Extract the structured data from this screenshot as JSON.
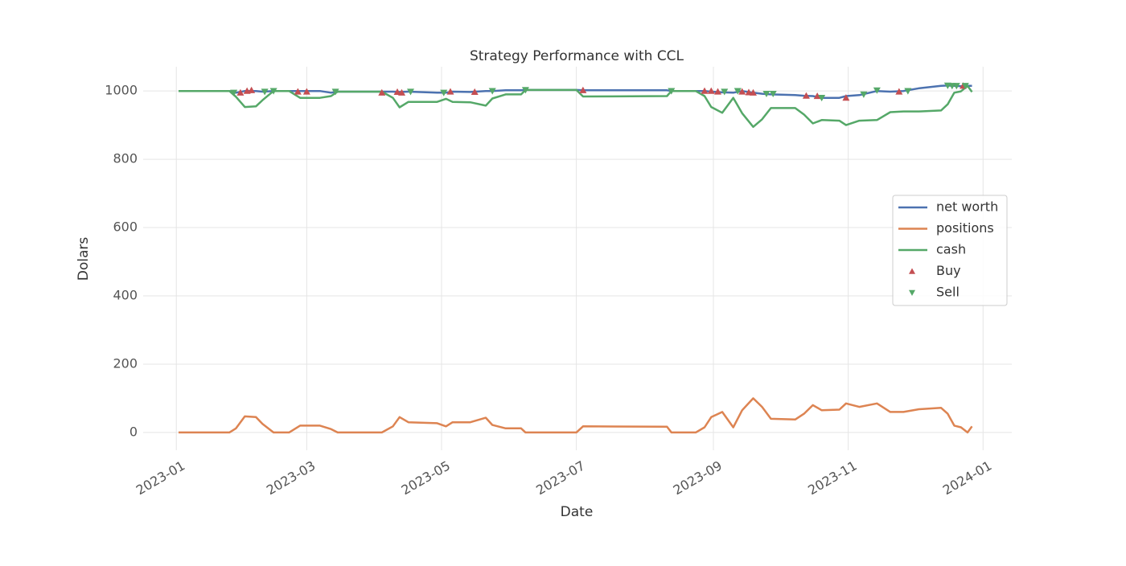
{
  "chart_data": {
    "type": "line",
    "title": "Strategy Performance with CCL",
    "xlabel": "Date",
    "ylabel": "Dolars",
    "grid": true,
    "legend": "center right",
    "xlim": [
      "2022-12-17",
      "2024-01-14"
    ],
    "ylim": [
      -52,
      1071
    ],
    "yticks": [
      0,
      200,
      400,
      600,
      800,
      1000
    ],
    "xticks": [
      {
        "value": "2023-01-01",
        "label": "2023-01"
      },
      {
        "value": "2023-03-01",
        "label": "2023-03"
      },
      {
        "value": "2023-05-01",
        "label": "2023-05"
      },
      {
        "value": "2023-07-01",
        "label": "2023-07"
      },
      {
        "value": "2023-09-01",
        "label": "2023-09"
      },
      {
        "value": "2023-11-01",
        "label": "2023-11"
      },
      {
        "value": "2024-01-01",
        "label": "2024-01"
      }
    ],
    "x": [
      "2023-01-02",
      "2023-01-25",
      "2023-01-28",
      "2023-02-01",
      "2023-02-06",
      "2023-02-09",
      "2023-02-14",
      "2023-02-21",
      "2023-02-26",
      "2023-03-07",
      "2023-03-12",
      "2023-03-15",
      "2023-04-04",
      "2023-04-09",
      "2023-04-12",
      "2023-04-16",
      "2023-04-29",
      "2023-05-03",
      "2023-05-06",
      "2023-05-14",
      "2023-05-21",
      "2023-05-24",
      "2023-05-30",
      "2023-06-06",
      "2023-06-08",
      "2023-07-01",
      "2023-07-04",
      "2023-08-11",
      "2023-08-13",
      "2023-08-24",
      "2023-08-28",
      "2023-08-31",
      "2023-09-05",
      "2023-09-10",
      "2023-09-14",
      "2023-09-19",
      "2023-09-23",
      "2023-09-27",
      "2023-10-08",
      "2023-10-12",
      "2023-10-16",
      "2023-10-20",
      "2023-10-28",
      "2023-10-31",
      "2023-11-06",
      "2023-11-14",
      "2023-11-20",
      "2023-11-26",
      "2023-12-03",
      "2023-12-13",
      "2023-12-16",
      "2023-12-19",
      "2023-12-22",
      "2023-12-25",
      "2023-12-27"
    ],
    "series": [
      {
        "name": "net worth",
        "color": "#4c72b0",
        "values": [
          1000,
          1000,
          995,
          1000,
          1000,
          998,
          1000,
          1000,
          1000,
          1000,
          995,
          998,
          998,
          998,
          997,
          998,
          995,
          995,
          998,
          997,
          1000,
          1000,
          1002,
          1002,
          1003,
          1003,
          1002,
          1002,
          1000,
          1000,
          1000,
          998,
          996,
          995,
          1000,
          995,
          992,
          990,
          988,
          986,
          985,
          980,
          980,
          985,
          988,
          1000,
          998,
          1000,
          1008,
          1015,
          1016,
          1015,
          1014,
          1015,
          1015
        ]
      },
      {
        "name": "positions",
        "color": "#dd8452",
        "values": [
          0,
          0,
          12,
          47,
          45,
          25,
          0,
          0,
          20,
          20,
          10,
          0,
          0,
          18,
          45,
          30,
          27,
          18,
          30,
          30,
          43,
          22,
          12,
          12,
          0,
          0,
          18,
          17,
          0,
          0,
          15,
          45,
          60,
          15,
          65,
          100,
          75,
          40,
          38,
          55,
          80,
          65,
          67,
          85,
          75,
          85,
          60,
          60,
          68,
          72,
          55,
          20,
          15,
          0,
          18
        ]
      },
      {
        "name": "cash",
        "color": "#55a868",
        "values": [
          1000,
          1000,
          983,
          953,
          955,
          973,
          1000,
          1000,
          980,
          980,
          985,
          998,
          998,
          980,
          952,
          968,
          968,
          977,
          968,
          967,
          957,
          978,
          990,
          990,
          1003,
          1003,
          984,
          985,
          1000,
          1000,
          985,
          953,
          936,
          980,
          935,
          895,
          917,
          950,
          950,
          931,
          905,
          915,
          913,
          900,
          913,
          915,
          938,
          940,
          940,
          943,
          961,
          995,
          999,
          1015,
          997
        ]
      },
      {
        "name": "Buy",
        "color": "#c44e52",
        "marker": "^",
        "x": [
          "2023-01-30",
          "2023-02-02",
          "2023-02-04",
          "2023-02-25",
          "2023-03-01",
          "2023-04-04",
          "2023-04-11",
          "2023-04-13",
          "2023-05-05",
          "2023-05-16",
          "2023-07-04",
          "2023-08-28",
          "2023-08-31",
          "2023-09-03",
          "2023-09-14",
          "2023-09-17",
          "2023-09-19",
          "2023-10-13",
          "2023-10-18",
          "2023-10-31",
          "2023-11-24",
          "2023-12-23"
        ],
        "values": [
          995,
          1000,
          1002,
          998,
          998,
          995,
          997,
          995,
          998,
          997,
          1002,
          1000,
          1000,
          998,
          998,
          996,
          995,
          986,
          985,
          980,
          998,
          1015
        ]
      },
      {
        "name": "Sell",
        "color": "#55a868",
        "marker": "v",
        "x": [
          "2023-01-27",
          "2023-02-10",
          "2023-02-14",
          "2023-03-14",
          "2023-04-17",
          "2023-05-02",
          "2023-05-24",
          "2023-06-08",
          "2023-08-13",
          "2023-09-06",
          "2023-09-12",
          "2023-09-25",
          "2023-09-28",
          "2023-10-20",
          "2023-11-08",
          "2023-11-14",
          "2023-11-28",
          "2023-12-16",
          "2023-12-18",
          "2023-12-20",
          "2023-12-24"
        ],
        "values": [
          995,
          998,
          1000,
          998,
          998,
          995,
          1000,
          1003,
          1000,
          998,
          1000,
          992,
          992,
          980,
          990,
          1002,
          1000,
          1016,
          1015,
          1015,
          1015
        ]
      }
    ]
  }
}
